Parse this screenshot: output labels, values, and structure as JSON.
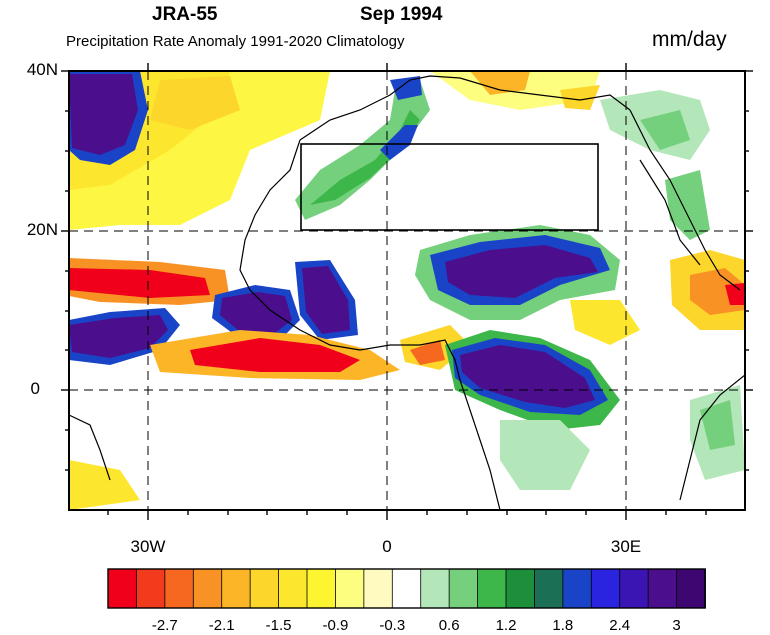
{
  "header": {
    "dataset": "JRA-55",
    "period": "Sep 1994",
    "subtitle": "Precipitation Rate Anomaly 1991-2020 Climatology",
    "units": "mm/day"
  },
  "axes": {
    "lat_labels": [
      "40N",
      "20N",
      "0"
    ],
    "lon_labels": [
      "30W",
      "0",
      "30E"
    ]
  },
  "map": {
    "domain": {
      "lon": [
        -40,
        45
      ],
      "lat": [
        -15,
        40
      ]
    },
    "box_region": {
      "lon": [
        -11,
        27
      ],
      "lat": [
        20,
        31
      ]
    }
  },
  "colorbar": {
    "colors": [
      "#f0001a",
      "#f23a1c",
      "#f6681f",
      "#f99224",
      "#fbb527",
      "#fcd62b",
      "#fde72e",
      "#fdf52f",
      "#fdfd80",
      "#fffbc0",
      "#ffffff",
      "#b3e6b8",
      "#74d07c",
      "#3db64a",
      "#1d8f3a",
      "#1b6f55",
      "#1a44c8",
      "#2a24e0",
      "#3b14b4",
      "#4b0e8c",
      "#3d0670"
    ],
    "labels": [
      "-2.7",
      "-2.1",
      "-1.5",
      "-0.9",
      "-0.3",
      "0.6",
      "1.2",
      "1.8",
      "2.4",
      "3"
    ]
  }
}
